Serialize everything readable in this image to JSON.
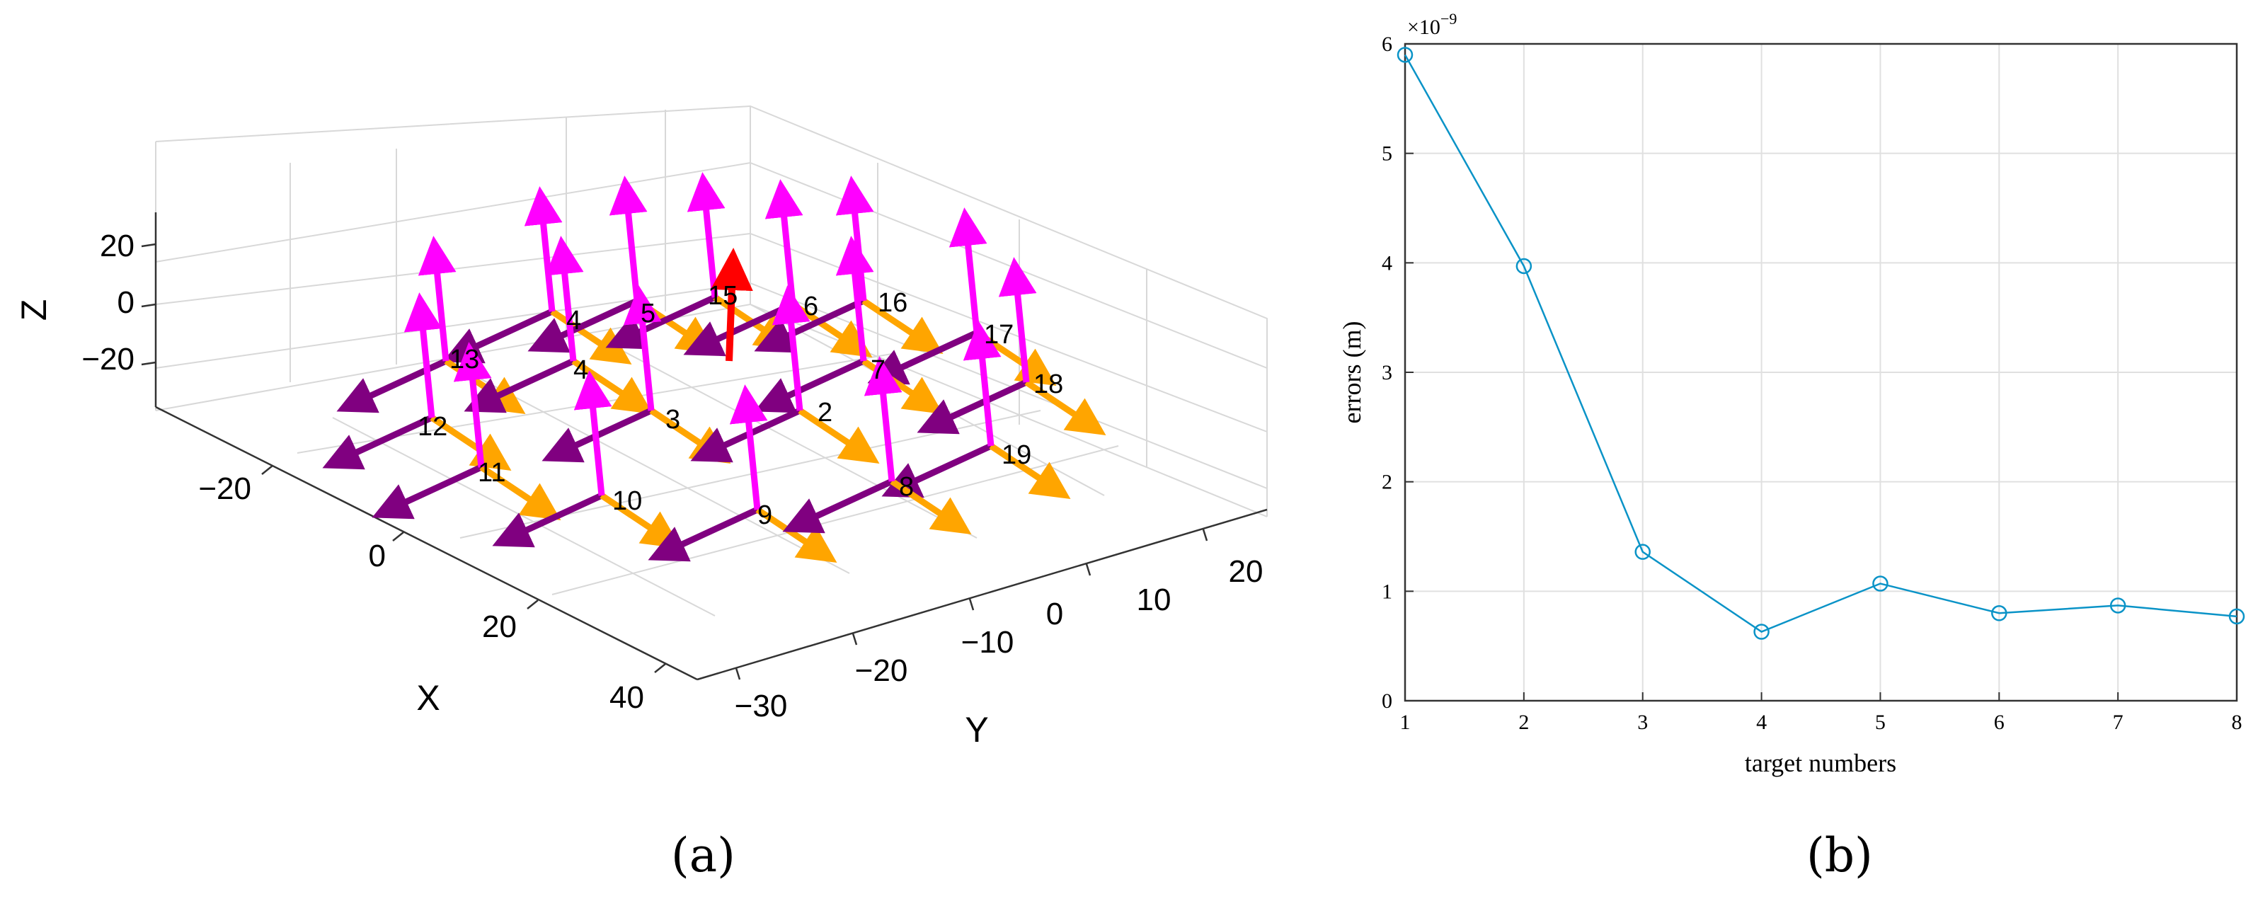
{
  "panel_a": {
    "caption": "(a)",
    "chart_data": {
      "type": "3d-frames",
      "xlabel": "X",
      "ylabel": "Y",
      "zlabel": "Z",
      "x_ticks": [
        "−20",
        "0",
        "20",
        "40"
      ],
      "y_ticks": [
        "−30",
        "−20",
        "−10",
        "0",
        "10",
        "20"
      ],
      "z_ticks": [
        "20",
        "0",
        "−20"
      ],
      "frame_labels": [
        "4",
        "5",
        "15",
        "6",
        "16",
        "17",
        "13",
        "4",
        "7",
        "18",
        "12",
        "3",
        "2",
        "19",
        "11",
        "10",
        "9",
        "8"
      ],
      "colors": {
        "x_axis": "#800080",
        "y_axis": "#FFA500",
        "z_axis": "#FF00FF",
        "origin_z": "#FF0000",
        "box": "#000000",
        "grid": "#d8d8d8"
      }
    }
  },
  "panel_b": {
    "caption": "(b)",
    "chart_data": {
      "type": "line",
      "x": [
        1,
        2,
        3,
        4,
        5,
        6,
        7,
        8
      ],
      "values": [
        5.9,
        3.97,
        1.36,
        0.63,
        1.07,
        0.8,
        0.87,
        0.77
      ],
      "exponent_label": "×10",
      "exponent_power": "−9",
      "xlabel": "target numbers",
      "ylabel": "errors (m)",
      "xlim": [
        1,
        8
      ],
      "ylim": [
        0,
        6
      ],
      "x_ticks": [
        "1",
        "2",
        "3",
        "4",
        "5",
        "6",
        "7",
        "8"
      ],
      "y_ticks": [
        "0",
        "1",
        "2",
        "3",
        "4",
        "5",
        "6"
      ],
      "grid": true,
      "marker": "circle",
      "line_color": "#0a93c7"
    }
  }
}
